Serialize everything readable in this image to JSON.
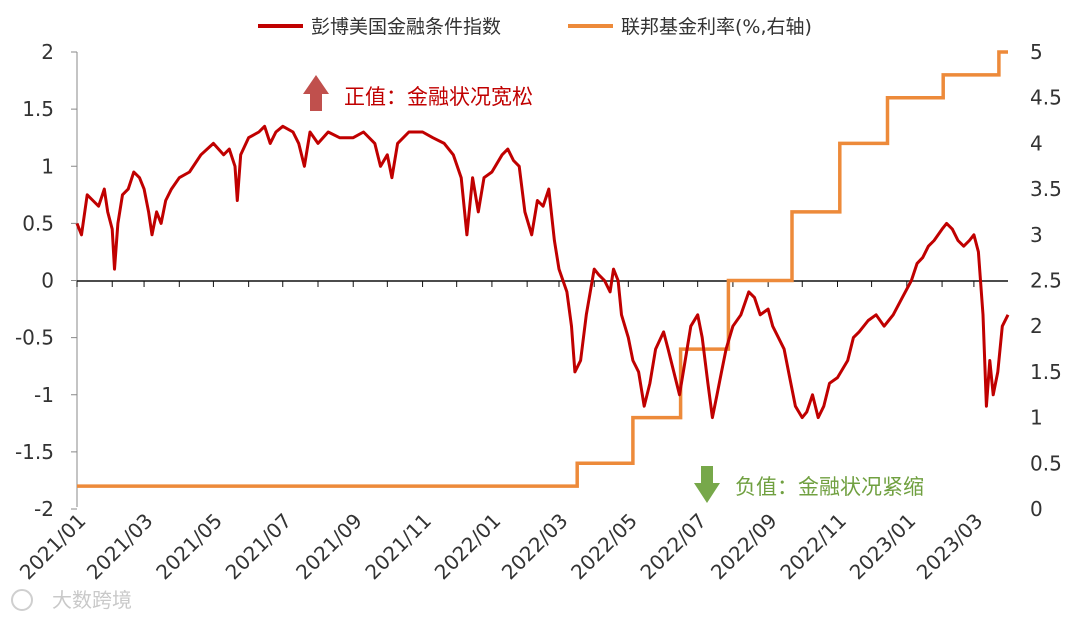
{
  "chart_data": {
    "type": "line",
    "title": "",
    "legend_placement": "top-center",
    "grid": false,
    "x_ticks": [
      "2021/01",
      "2021/03",
      "2021/05",
      "2021/07",
      "2021/09",
      "2021/11",
      "2022/01",
      "2022/03",
      "2022/05",
      "2022/07",
      "2022/09",
      "2022/11",
      "2023/01",
      "2023/03"
    ],
    "x_range": [
      "2021-01-01",
      "2023-03-31"
    ],
    "y_left": {
      "range": [
        -2,
        2
      ],
      "ticks": [
        "2",
        "1.5",
        "1",
        "0.5",
        "0",
        "-0.5",
        "-1",
        "-1.5",
        "-2"
      ]
    },
    "y_right": {
      "range": [
        0,
        5
      ],
      "ticks": [
        "5",
        "4.5",
        "4",
        "3.5",
        "3",
        "2.5",
        "2",
        "1.5",
        "1",
        "0.5",
        "0"
      ]
    },
    "series": [
      {
        "name": "彭博美国金融条件指数",
        "axis": "left",
        "color": "#c00000",
        "points": [
          [
            "2021-01-01",
            0.5
          ],
          [
            "2021-01-05",
            0.4
          ],
          [
            "2021-01-10",
            0.75
          ],
          [
            "2021-01-15",
            0.7
          ],
          [
            "2021-01-20",
            0.65
          ],
          [
            "2021-01-25",
            0.8
          ],
          [
            "2021-01-28",
            0.6
          ],
          [
            "2021-02-01",
            0.45
          ],
          [
            "2021-02-03",
            0.1
          ],
          [
            "2021-02-06",
            0.5
          ],
          [
            "2021-02-10",
            0.75
          ],
          [
            "2021-02-15",
            0.8
          ],
          [
            "2021-02-20",
            0.95
          ],
          [
            "2021-02-25",
            0.9
          ],
          [
            "2021-03-01",
            0.8
          ],
          [
            "2021-03-05",
            0.6
          ],
          [
            "2021-03-08",
            0.4
          ],
          [
            "2021-03-12",
            0.6
          ],
          [
            "2021-03-16",
            0.5
          ],
          [
            "2021-03-20",
            0.7
          ],
          [
            "2021-03-25",
            0.8
          ],
          [
            "2021-04-01",
            0.9
          ],
          [
            "2021-04-10",
            0.95
          ],
          [
            "2021-04-20",
            1.1
          ],
          [
            "2021-05-01",
            1.2
          ],
          [
            "2021-05-10",
            1.1
          ],
          [
            "2021-05-15",
            1.15
          ],
          [
            "2021-05-20",
            1.0
          ],
          [
            "2021-05-22",
            0.7
          ],
          [
            "2021-05-25",
            1.1
          ],
          [
            "2021-06-01",
            1.25
          ],
          [
            "2021-06-10",
            1.3
          ],
          [
            "2021-06-15",
            1.35
          ],
          [
            "2021-06-20",
            1.2
          ],
          [
            "2021-06-25",
            1.3
          ],
          [
            "2021-07-01",
            1.35
          ],
          [
            "2021-07-10",
            1.3
          ],
          [
            "2021-07-15",
            1.2
          ],
          [
            "2021-07-20",
            1.0
          ],
          [
            "2021-07-25",
            1.3
          ],
          [
            "2021-08-01",
            1.2
          ],
          [
            "2021-08-10",
            1.3
          ],
          [
            "2021-08-20",
            1.25
          ],
          [
            "2021-09-01",
            1.25
          ],
          [
            "2021-09-10",
            1.3
          ],
          [
            "2021-09-20",
            1.2
          ],
          [
            "2021-09-25",
            1.0
          ],
          [
            "2021-10-01",
            1.1
          ],
          [
            "2021-10-05",
            0.9
          ],
          [
            "2021-10-10",
            1.2
          ],
          [
            "2021-10-20",
            1.3
          ],
          [
            "2021-11-01",
            1.3
          ],
          [
            "2021-11-10",
            1.25
          ],
          [
            "2021-11-20",
            1.2
          ],
          [
            "2021-11-28",
            1.1
          ],
          [
            "2021-12-05",
            0.9
          ],
          [
            "2021-12-10",
            0.4
          ],
          [
            "2021-12-15",
            0.9
          ],
          [
            "2021-12-20",
            0.6
          ],
          [
            "2021-12-25",
            0.9
          ],
          [
            "2022-01-01",
            0.95
          ],
          [
            "2022-01-10",
            1.1
          ],
          [
            "2022-01-15",
            1.15
          ],
          [
            "2022-01-20",
            1.05
          ],
          [
            "2022-01-25",
            1.0
          ],
          [
            "2022-01-30",
            0.6
          ],
          [
            "2022-02-05",
            0.4
          ],
          [
            "2022-02-10",
            0.7
          ],
          [
            "2022-02-15",
            0.65
          ],
          [
            "2022-02-20",
            0.8
          ],
          [
            "2022-02-25",
            0.35
          ],
          [
            "2022-03-01",
            0.1
          ],
          [
            "2022-03-08",
            -0.1
          ],
          [
            "2022-03-12",
            -0.4
          ],
          [
            "2022-03-15",
            -0.8
          ],
          [
            "2022-03-20",
            -0.7
          ],
          [
            "2022-03-25",
            -0.3
          ],
          [
            "2022-04-01",
            0.1
          ],
          [
            "2022-04-05",
            0.05
          ],
          [
            "2022-04-10",
            0.0
          ],
          [
            "2022-04-15",
            -0.1
          ],
          [
            "2022-04-18",
            0.1
          ],
          [
            "2022-04-22",
            0.0
          ],
          [
            "2022-04-25",
            -0.3
          ],
          [
            "2022-05-01",
            -0.5
          ],
          [
            "2022-05-05",
            -0.7
          ],
          [
            "2022-05-10",
            -0.8
          ],
          [
            "2022-05-15",
            -1.1
          ],
          [
            "2022-05-20",
            -0.9
          ],
          [
            "2022-05-25",
            -0.6
          ],
          [
            "2022-06-01",
            -0.45
          ],
          [
            "2022-06-05",
            -0.6
          ],
          [
            "2022-06-10",
            -0.8
          ],
          [
            "2022-06-15",
            -1.0
          ],
          [
            "2022-06-20",
            -0.7
          ],
          [
            "2022-06-25",
            -0.4
          ],
          [
            "2022-07-01",
            -0.3
          ],
          [
            "2022-07-05",
            -0.5
          ],
          [
            "2022-07-10",
            -0.9
          ],
          [
            "2022-07-14",
            -1.2
          ],
          [
            "2022-07-18",
            -1.0
          ],
          [
            "2022-07-22",
            -0.8
          ],
          [
            "2022-07-26",
            -0.6
          ],
          [
            "2022-08-01",
            -0.4
          ],
          [
            "2022-08-08",
            -0.3
          ],
          [
            "2022-08-15",
            -0.1
          ],
          [
            "2022-08-20",
            -0.15
          ],
          [
            "2022-08-25",
            -0.3
          ],
          [
            "2022-09-01",
            -0.25
          ],
          [
            "2022-09-05",
            -0.4
          ],
          [
            "2022-09-10",
            -0.5
          ],
          [
            "2022-09-15",
            -0.6
          ],
          [
            "2022-09-20",
            -0.85
          ],
          [
            "2022-09-25",
            -1.1
          ],
          [
            "2022-10-01",
            -1.2
          ],
          [
            "2022-10-05",
            -1.15
          ],
          [
            "2022-10-10",
            -1.0
          ],
          [
            "2022-10-15",
            -1.2
          ],
          [
            "2022-10-20",
            -1.1
          ],
          [
            "2022-10-25",
            -0.9
          ],
          [
            "2022-11-01",
            -0.85
          ],
          [
            "2022-11-10",
            -0.7
          ],
          [
            "2022-11-15",
            -0.5
          ],
          [
            "2022-11-20",
            -0.45
          ],
          [
            "2022-11-28",
            -0.35
          ],
          [
            "2022-12-05",
            -0.3
          ],
          [
            "2022-12-12",
            -0.4
          ],
          [
            "2022-12-20",
            -0.3
          ],
          [
            "2022-12-28",
            -0.15
          ],
          [
            "2023-01-05",
            0.0
          ],
          [
            "2023-01-10",
            0.15
          ],
          [
            "2023-01-15",
            0.2
          ],
          [
            "2023-01-20",
            0.3
          ],
          [
            "2023-01-25",
            0.35
          ],
          [
            "2023-02-01",
            0.45
          ],
          [
            "2023-02-05",
            0.5
          ],
          [
            "2023-02-10",
            0.45
          ],
          [
            "2023-02-15",
            0.35
          ],
          [
            "2023-02-20",
            0.3
          ],
          [
            "2023-02-25",
            0.35
          ],
          [
            "2023-03-01",
            0.4
          ],
          [
            "2023-03-05",
            0.25
          ],
          [
            "2023-03-09",
            -0.3
          ],
          [
            "2023-03-12",
            -1.1
          ],
          [
            "2023-03-15",
            -0.7
          ],
          [
            "2023-03-18",
            -1.0
          ],
          [
            "2023-03-22",
            -0.8
          ],
          [
            "2023-03-26",
            -0.4
          ],
          [
            "2023-03-31",
            -0.3
          ]
        ]
      },
      {
        "name": "联邦基金利率(%,右轴)",
        "axis": "right",
        "color": "#ed8a3a",
        "step": true,
        "points": [
          [
            "2021-01-01",
            0.25
          ],
          [
            "2022-03-17",
            0.5
          ],
          [
            "2022-05-05",
            1.0
          ],
          [
            "2022-06-16",
            1.75
          ],
          [
            "2022-07-28",
            2.5
          ],
          [
            "2022-09-22",
            3.25
          ],
          [
            "2022-11-03",
            4.0
          ],
          [
            "2022-12-15",
            4.5
          ],
          [
            "2023-02-02",
            4.75
          ],
          [
            "2023-03-23",
            5.0
          ]
        ]
      }
    ],
    "annotations": [
      {
        "text": "正值：金融状况宽松",
        "arrow": "up",
        "color": "#c0504d"
      },
      {
        "text": "负值：金融状况紧缩",
        "arrow": "down",
        "color": "#77a84a"
      }
    ]
  },
  "watermark": "大数跨境"
}
